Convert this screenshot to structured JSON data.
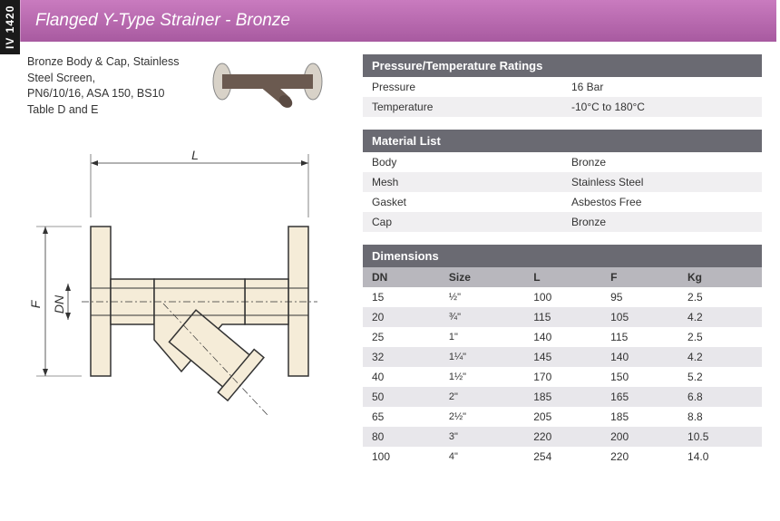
{
  "sidebar": {
    "code": "IV 1420"
  },
  "header": {
    "title": "Flanged Y-Type Strainer - Bronze"
  },
  "description": "Bronze Body & Cap, Stainless Steel Screen,\nPN6/10/16, ASA 150, BS10 Table D and E",
  "diagram": {
    "labels": {
      "L": "L",
      "F": "F",
      "DN": "DN"
    },
    "stroke_color": "#333333",
    "fill_color": "#f5ecd8",
    "line_width": 1.5
  },
  "photo": {
    "body_color": "#6b5a50",
    "flange_color": "#d8d2c8"
  },
  "pressure_temp": {
    "title": "Pressure/Temperature Ratings",
    "rows": [
      {
        "label": "Pressure",
        "value": "16 Bar"
      },
      {
        "label": "Temperature",
        "value": "-10°C to 180°C"
      }
    ]
  },
  "material_list": {
    "title": "Material List",
    "rows": [
      {
        "label": "Body",
        "value": "Bronze"
      },
      {
        "label": "Mesh",
        "value": "Stainless Steel"
      },
      {
        "label": "Gasket",
        "value": "Asbestos Free"
      },
      {
        "label": "Cap",
        "value": "Bronze"
      }
    ]
  },
  "dimensions": {
    "title": "Dimensions",
    "columns": [
      "DN",
      "Size",
      "L",
      "F",
      "Kg"
    ],
    "rows": [
      [
        "15",
        "½\"",
        "100",
        "95",
        "2.5"
      ],
      [
        "20",
        "¾\"",
        "115",
        "105",
        "4.2"
      ],
      [
        "25",
        "1\"",
        "140",
        "115",
        "2.5"
      ],
      [
        "32",
        "1¼\"",
        "145",
        "140",
        "4.2"
      ],
      [
        "40",
        "1½\"",
        "170",
        "150",
        "5.2"
      ],
      [
        "50",
        "2\"",
        "185",
        "165",
        "6.8"
      ],
      [
        "65",
        "2½\"",
        "205",
        "185",
        "8.8"
      ],
      [
        "80",
        "3\"",
        "220",
        "200",
        "10.5"
      ],
      [
        "100",
        "4\"",
        "254",
        "220",
        "14.0"
      ]
    ]
  },
  "colors": {
    "header_gradient_top": "#c97bbf",
    "header_gradient_bottom": "#a85aa0",
    "panel_header_bg": "#6a6a72",
    "dim_header_bg": "#b8b7bd",
    "row_alt_bg": "#e8e7eb",
    "text": "#333333"
  }
}
